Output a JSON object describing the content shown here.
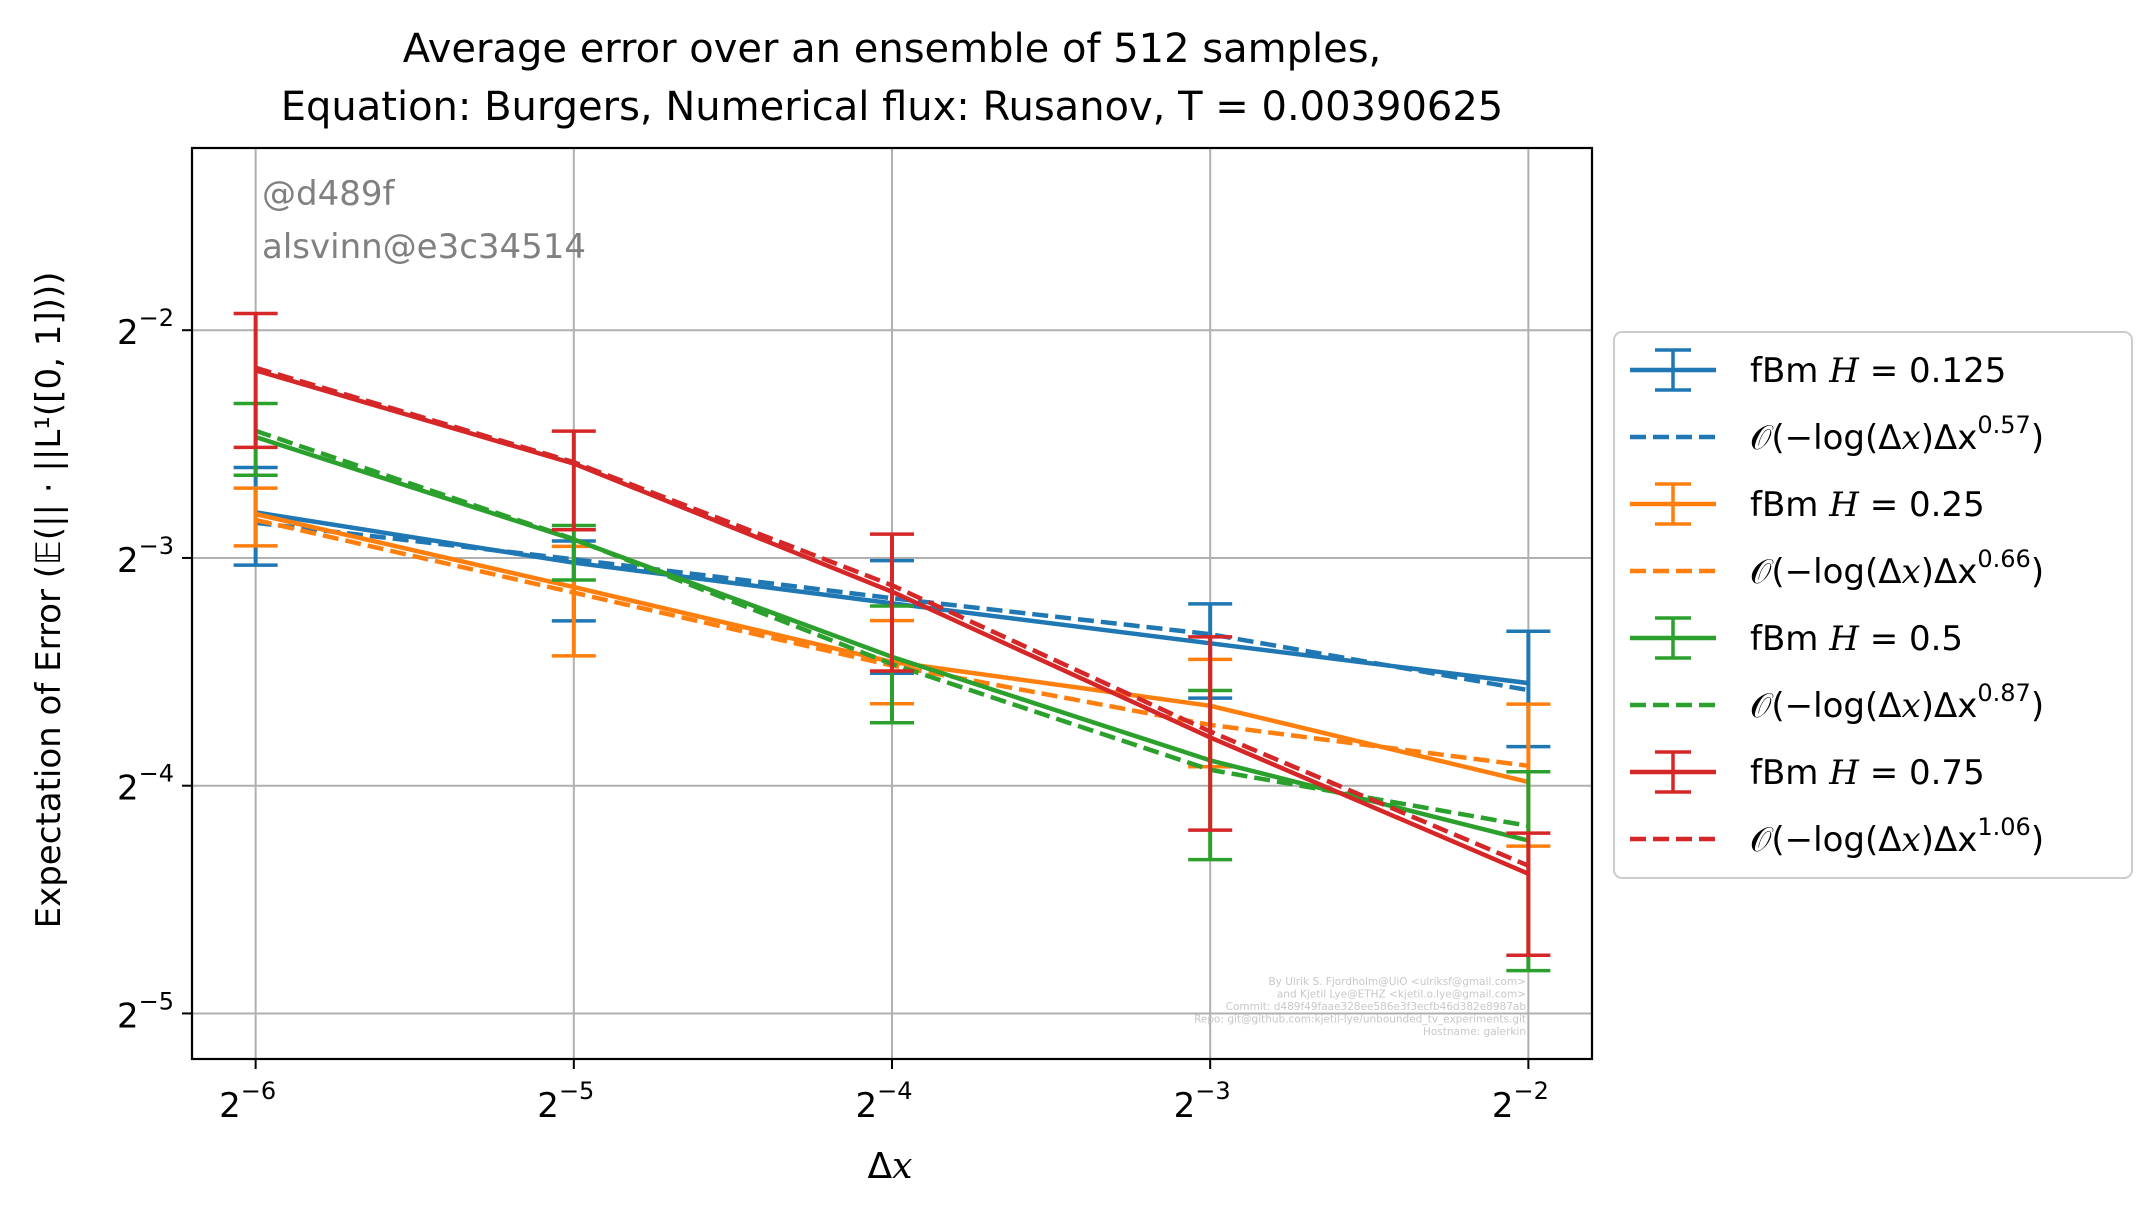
{
  "chart_data": {
    "type": "line",
    "title": [
      "Average error over an ensemble of 512 samples,",
      "Equation: Burgers, Numerical flux: Rusanov, T = 0.00390625"
    ],
    "xlabel": "Δx",
    "ylabel": "Expectation of Error (𝔼(|| · ||L¹([0, 1])))",
    "xscale": "log2",
    "yscale": "log2",
    "xlim_log2": [
      -6.2,
      -1.8
    ],
    "ylim_log2": [
      -5.2,
      -1.2
    ],
    "xticks": [
      {
        "exp": -6,
        "base": "2",
        "sup": "−6"
      },
      {
        "exp": -5,
        "base": "2",
        "sup": "−5"
      },
      {
        "exp": -4,
        "base": "2",
        "sup": "−4"
      },
      {
        "exp": -3,
        "base": "2",
        "sup": "−3"
      },
      {
        "exp": -2,
        "base": "2",
        "sup": "−2"
      }
    ],
    "yticks": [
      {
        "exp": -2,
        "base": "2",
        "sup": "−2"
      },
      {
        "exp": -3,
        "base": "2",
        "sup": "−3"
      },
      {
        "exp": -4,
        "base": "2",
        "sup": "−4"
      },
      {
        "exp": -5,
        "base": "2",
        "sup": "−5"
      }
    ],
    "grid": true,
    "legend_placement": "outside-right",
    "x": [
      0.015625,
      0.03125,
      0.0625,
      0.125,
      0.25
    ],
    "series": [
      {
        "label_main": "fBm ",
        "label_var": "H",
        "label_rest": " = 0.125",
        "color": "#1f77b4",
        "dashed": false,
        "values": [
          0.1436,
          0.1232,
          0.1089,
          0.0964,
          0.0854
        ],
        "err_low": [
          0.1223,
          0.1032,
          0.088,
          0.0816,
          0.0704
        ],
        "err_high": [
          0.1646,
          0.1316,
          0.124,
          0.1087,
          0.1
        ]
      },
      {
        "label_main": "𝒪(−log(Δ",
        "label_var": "x",
        "label_rest": ")Δx",
        "label_sup": "0.57",
        "label_close": ")",
        "color": "#1f77b4",
        "dashed": true,
        "values": [
          0.1391,
          0.1245,
          0.1106,
          0.0991,
          0.0836
        ]
      },
      {
        "label_main": "fBm ",
        "label_var": "H",
        "label_rest": " = 0.25",
        "color": "#ff7f0e",
        "dashed": false,
        "values": [
          0.1429,
          0.1144,
          0.0911,
          0.0797,
          0.0632
        ],
        "err_low": [
          0.1297,
          0.0928,
          0.0802,
          0.0662,
          0.052
        ],
        "err_high": [
          0.1546,
          0.1295,
          0.1033,
          0.0918,
          0.0801
        ]
      },
      {
        "label_main": "𝒪(−log(Δ",
        "label_var": "x",
        "label_rest": ")Δx",
        "label_sup": "0.66",
        "label_close": ")",
        "color": "#ff7f0e",
        "dashed": true,
        "values": [
          0.1403,
          0.1125,
          0.0901,
          0.0752,
          0.0664
        ]
      },
      {
        "label_main": "fBm ",
        "label_var": "H",
        "label_rest": " = 0.5",
        "color": "#2ca02c",
        "dashed": false,
        "values": [
          0.1806,
          0.1322,
          0.0925,
          0.0675,
          0.0529
        ],
        "err_low": [
          0.1608,
          0.1169,
          0.0757,
          0.0499,
          0.0356
        ],
        "err_high": [
          0.2,
          0.138,
          0.108,
          0.0835,
          0.0652
        ]
      },
      {
        "label_main": "𝒪(−log(Δ",
        "label_var": "x",
        "label_rest": ")Δx",
        "label_sup": "0.87",
        "label_close": ")",
        "color": "#2ca02c",
        "dashed": true,
        "values": [
          0.184,
          0.1324,
          0.0905,
          0.0656,
          0.0553
        ]
      },
      {
        "label_main": "fBm ",
        "label_var": "H",
        "label_rest": " = 0.75",
        "color": "#d62728",
        "dashed": false,
        "values": [
          0.2213,
          0.1666,
          0.1128,
          0.0724,
          0.0478
        ],
        "err_low": [
          0.175,
          0.1362,
          0.0886,
          0.0546,
          0.0373
        ],
        "err_high": [
          0.263,
          0.1839,
          0.1344,
          0.0983,
          0.0541
        ]
      },
      {
        "label_main": "𝒪(−log(Δ",
        "label_var": "x",
        "label_rest": ")Δx",
        "label_sup": "1.06",
        "label_close": ")",
        "color": "#d62728",
        "dashed": true,
        "values": [
          0.223,
          0.1673,
          0.115,
          0.0737,
          0.049
        ]
      }
    ],
    "annotations": {
      "hash": "@d489f",
      "build": "alsvinn@e3c34514",
      "credits": [
        "By Ulrik S. Fjordholm@UiO <ulriksf@gmail.com>",
        "and Kjetil Lye@ETHZ <kjetil.o.lye@gmail.com>",
        "Commit: d489f49faae328ee586e3f3ecfb46d382e8987ab",
        "Repo: git@github.com:kjetil-lye/unbounded_tv_experiments.git",
        "Hostname: galerkin"
      ]
    },
    "colors": {
      "text": "#000000",
      "annotation": "#808080",
      "credits": "#c8c8c8",
      "grid": "#b0b0b0"
    }
  }
}
